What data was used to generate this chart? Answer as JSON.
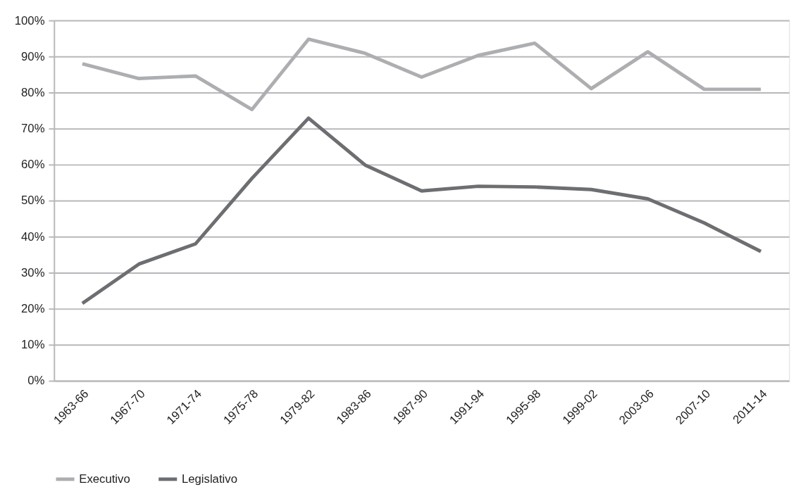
{
  "chart_data": {
    "type": "line",
    "categories": [
      "1963-66",
      "1967-70",
      "1971-74",
      "1975-78",
      "1979-82",
      "1983-86",
      "1987-90",
      "1991-94",
      "1995-98",
      "1999-02",
      "2003-06",
      "2007-10",
      "2011-14"
    ],
    "series": [
      {
        "name": "Executivo",
        "color": "#adaeb1",
        "values": [
          88.0,
          83.9,
          84.6,
          75.3,
          94.8,
          90.9,
          84.3,
          90.3,
          93.7,
          81.1,
          91.3,
          80.9,
          80.9
        ]
      },
      {
        "name": "Legislativo",
        "color": "#6d6e71",
        "values": [
          21.5,
          32.4,
          38.0,
          56.2,
          72.9,
          59.9,
          52.7,
          54.0,
          53.8,
          53.1,
          50.5,
          43.8,
          35.9
        ]
      }
    ],
    "ylim": [
      0,
      100
    ],
    "yticks": [
      {
        "value": 0,
        "label": "0%"
      },
      {
        "value": 10,
        "label": "10%"
      },
      {
        "value": 20,
        "label": "20%"
      },
      {
        "value": 30,
        "label": "30%"
      },
      {
        "value": 40,
        "label": "40%"
      },
      {
        "value": 50,
        "label": "50%"
      },
      {
        "value": 60,
        "label": "60%"
      },
      {
        "value": 70,
        "label": "70%"
      },
      {
        "value": 80,
        "label": "80%"
      },
      {
        "value": 90,
        "label": "90%"
      },
      {
        "value": 100,
        "label": "100%"
      }
    ],
    "grid": "y",
    "legend": "bottom",
    "marker": "none",
    "line_style": "solid"
  }
}
